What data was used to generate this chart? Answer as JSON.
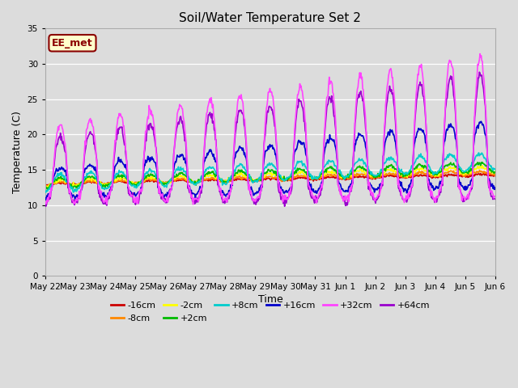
{
  "title": "Soil/Water Temperature Set 2",
  "xlabel": "Time",
  "ylabel": "Temperature (C)",
  "ylim": [
    0,
    35
  ],
  "yticks": [
    0,
    5,
    10,
    15,
    20,
    25,
    30,
    35
  ],
  "background_color": "#dcdcdc",
  "plot_bg_color": "#dcdcdc",
  "annotation_text": "EE_met",
  "annotation_bg": "#ffffcc",
  "annotation_border": "#8b0000",
  "series": {
    "-16cm": {
      "color": "#cc0000",
      "lw": 1.2
    },
    "-8cm": {
      "color": "#ff8800",
      "lw": 1.2
    },
    "-2cm": {
      "color": "#ffff00",
      "lw": 1.2
    },
    "+2cm": {
      "color": "#00bb00",
      "lw": 1.2
    },
    "+8cm": {
      "color": "#00cccc",
      "lw": 1.2
    },
    "+16cm": {
      "color": "#0000cc",
      "lw": 1.2
    },
    "+32cm": {
      "color": "#ff44ff",
      "lw": 1.2
    },
    "+64cm": {
      "color": "#9900cc",
      "lw": 1.2
    }
  },
  "x_labels": [
    "May 22",
    "May 23",
    "May 24",
    "May 25",
    "May 26",
    "May 27",
    "May 28",
    "May 29",
    "May 30",
    "May 31",
    "Jun 1",
    "Jun 2",
    "Jun 3",
    "Jun 4",
    "Jun 5",
    "Jun 6"
  ],
  "n_days": 16,
  "figsize": [
    6.4,
    4.8
  ],
  "dpi": 100
}
